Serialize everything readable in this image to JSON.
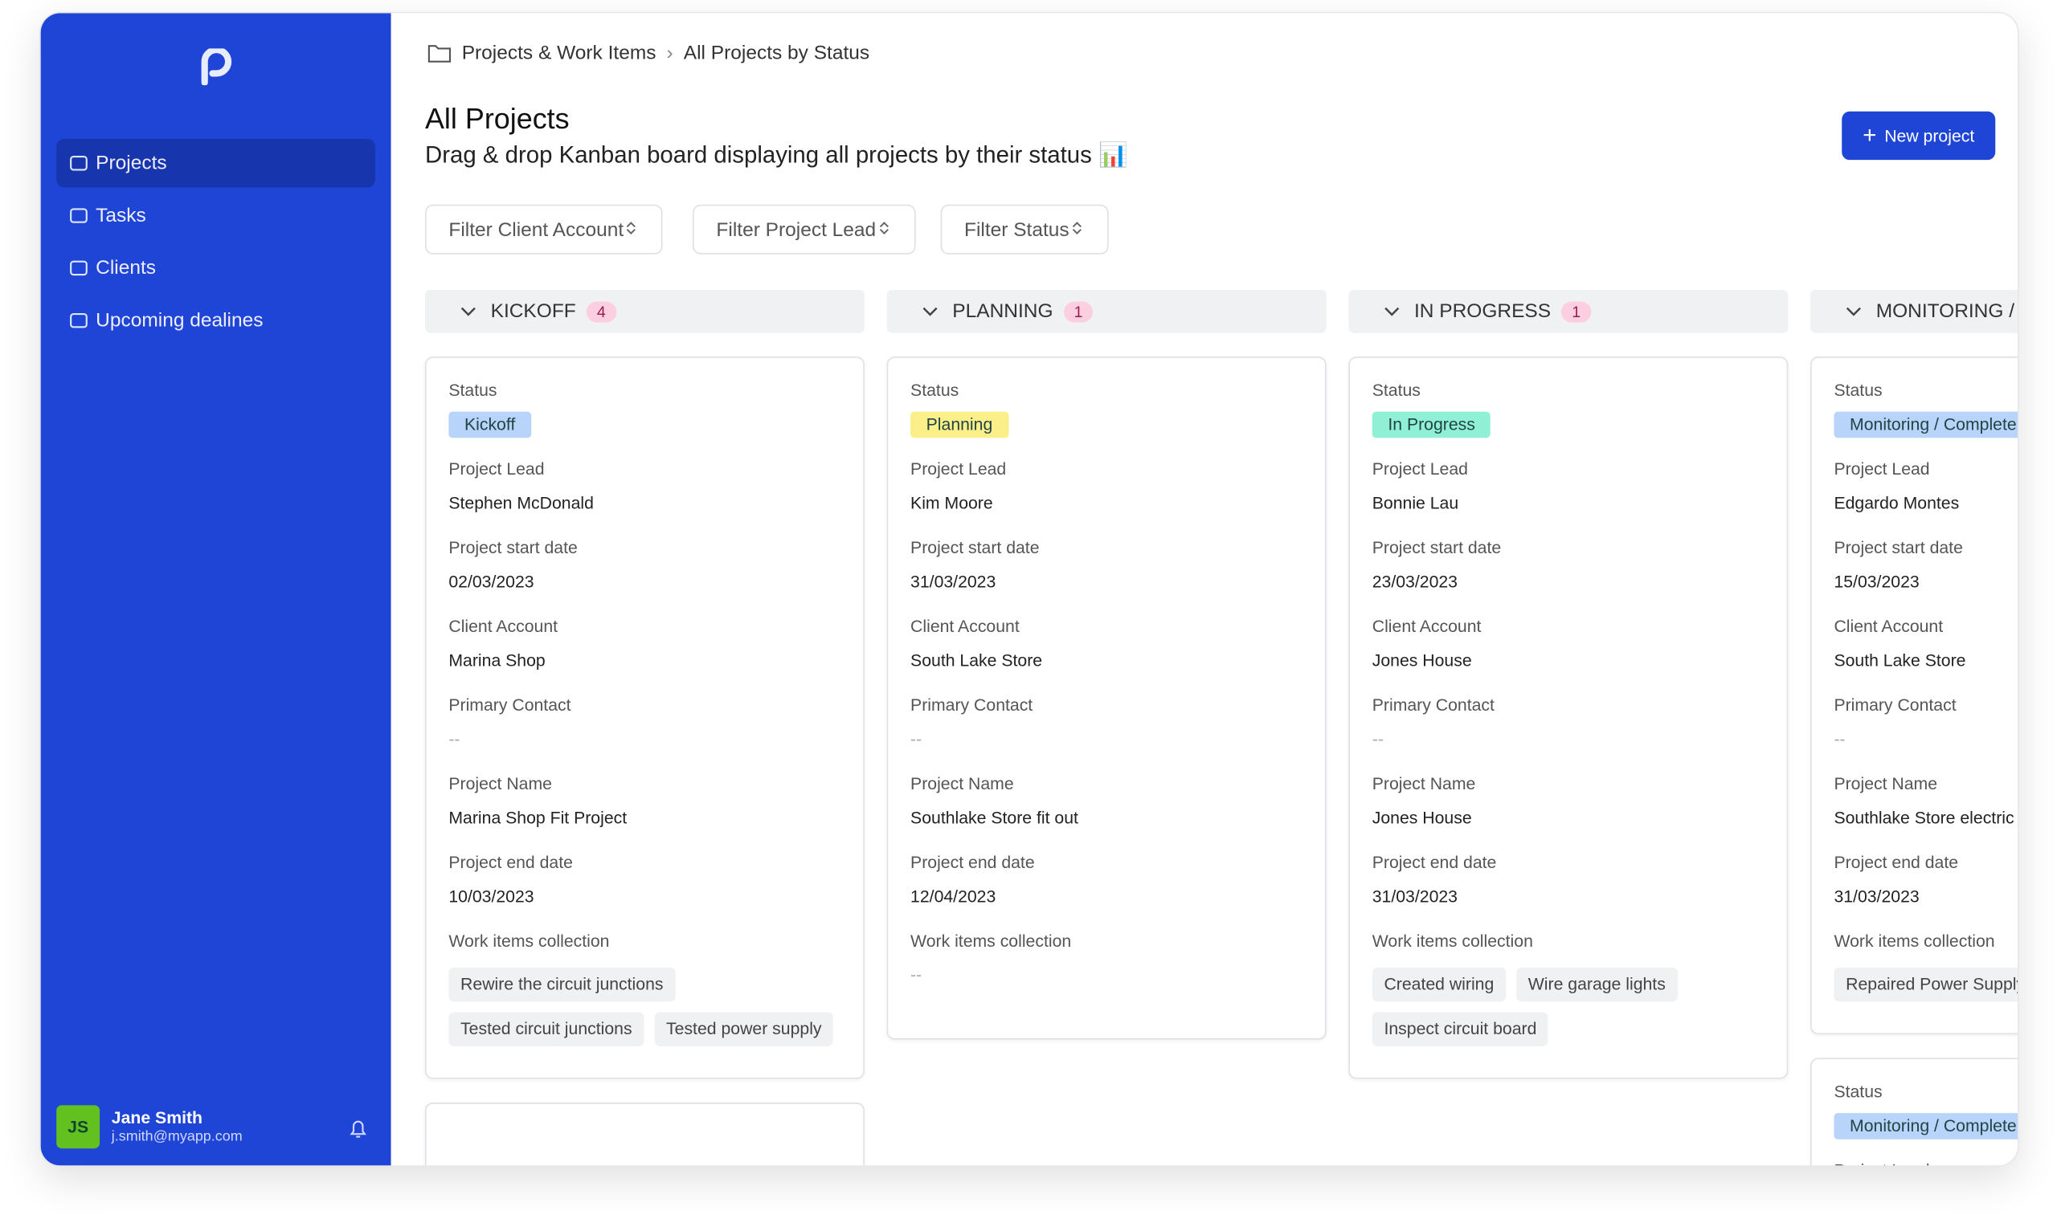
{
  "sidebar": {
    "nav": [
      "Projects",
      "Tasks",
      "Clients",
      "Upcoming dealines"
    ],
    "active": 0,
    "user": {
      "initials": "JS",
      "name": "Jane Smith",
      "email": "j.smith@myapp.com"
    }
  },
  "breadcrumb": [
    "Projects & Work Items",
    "All Projects by Status"
  ],
  "header": {
    "title": "All Projects",
    "subtitle": "Drag & drop Kanban board displaying all projects by their status 📊",
    "button": "New project"
  },
  "filters": [
    "Filter Client Account",
    "Filter Project Lead",
    "Filter Status"
  ],
  "columns": [
    {
      "name": "KICKOFF",
      "count": "4",
      "badge_color": "#b9d4fb",
      "cards": [
        {
          "fields": [
            {
              "label": "Status",
              "badge": "Kickoff"
            },
            {
              "label": "Project Lead",
              "value": "Stephen McDonald"
            },
            {
              "label": "Project start date",
              "value": "02/03/2023"
            },
            {
              "label": "Client Account",
              "value": "Marina Shop"
            },
            {
              "label": "Primary Contact",
              "value": "--"
            },
            {
              "label": "Project Name",
              "value": "Marina Shop Fit Project"
            },
            {
              "label": "Project end date",
              "value": "10/03/2023"
            },
            {
              "label": "Work items collection",
              "tags": [
                "Rewire the circuit junctions",
                "Tested circuit junctions",
                "Tested power supply"
              ]
            }
          ]
        },
        {
          "fields": []
        }
      ]
    },
    {
      "name": "PLANNING",
      "count": "1",
      "badge_color": "#fbef8a",
      "cards": [
        {
          "fields": [
            {
              "label": "Status",
              "badge": "Planning"
            },
            {
              "label": "Project Lead",
              "value": "Kim Moore"
            },
            {
              "label": "Project start date",
              "value": "31/03/2023"
            },
            {
              "label": "Client Account",
              "value": "South Lake Store"
            },
            {
              "label": "Primary Contact",
              "value": "--"
            },
            {
              "label": "Project Name",
              "value": "Southlake Store fit out"
            },
            {
              "label": "Project end date",
              "value": "12/04/2023"
            },
            {
              "label": "Work items collection",
              "value": "--"
            }
          ]
        }
      ]
    },
    {
      "name": "IN PROGRESS",
      "count": "1",
      "badge_color": "#8ff0d6",
      "cards": [
        {
          "fields": [
            {
              "label": "Status",
              "badge": "In Progress"
            },
            {
              "label": "Project Lead",
              "value": "Bonnie Lau"
            },
            {
              "label": "Project start date",
              "value": "23/03/2023"
            },
            {
              "label": "Client Account",
              "value": "Jones House"
            },
            {
              "label": "Primary Contact",
              "value": "--"
            },
            {
              "label": "Project Name",
              "value": "Jones House"
            },
            {
              "label": "Project end date",
              "value": "31/03/2023"
            },
            {
              "label": "Work items collection",
              "tags": [
                "Created wiring",
                "Wire garage lights",
                "Inspect circuit board"
              ]
            }
          ]
        }
      ]
    },
    {
      "name": "MONITORING /",
      "badge_color": "#b9d4fb",
      "cards": [
        {
          "fields": [
            {
              "label": "Status",
              "badge": "Monitoring / Complete"
            },
            {
              "label": "Project Lead",
              "value": "Edgardo Montes"
            },
            {
              "label": "Project start date",
              "value": "15/03/2023"
            },
            {
              "label": "Client Account",
              "value": "South Lake Store"
            },
            {
              "label": "Primary Contact",
              "value": "--"
            },
            {
              "label": "Project Name",
              "value": "Southlake Store electric"
            },
            {
              "label": "Project end date",
              "value": "31/03/2023"
            },
            {
              "label": "Work items collection",
              "tags": [
                "Repaired Power Supply"
              ]
            }
          ]
        },
        {
          "fields": [
            {
              "label": "Status",
              "badge": "Monitoring / Complete"
            },
            {
              "label": "Project Lead",
              "value": "--"
            }
          ]
        }
      ]
    }
  ]
}
